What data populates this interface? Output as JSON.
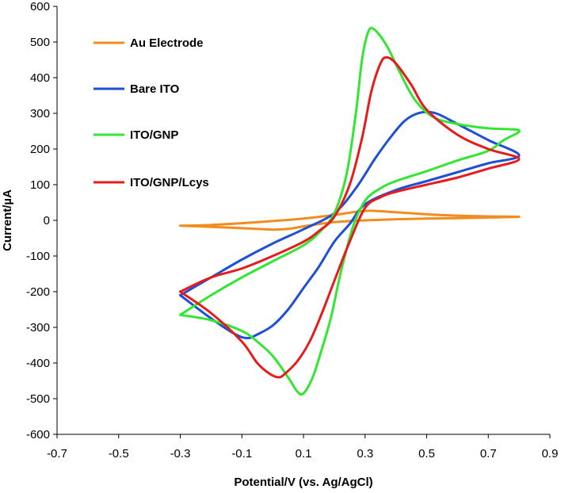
{
  "chart_data": {
    "type": "line",
    "title": "",
    "xlabel": "Potential/V (vs. Ag/AgCl)",
    "ylabel": "Current/µA",
    "xlim": [
      -0.7,
      0.9
    ],
    "ylim": [
      -600,
      600
    ],
    "xticks": [
      -0.7,
      -0.5,
      -0.3,
      -0.1,
      0.1,
      0.3,
      0.5,
      0.7,
      0.9
    ],
    "yticks": [
      -600,
      -500,
      -400,
      -300,
      -200,
      -100,
      0,
      100,
      200,
      300,
      400,
      500,
      600
    ],
    "x_tick_labels": [
      "-0.7",
      "-0.5",
      "-0.3",
      "-0.1",
      "0.1",
      "0.3",
      "0.5",
      "0.7",
      "0.9"
    ],
    "y_tick_labels": [
      "-600",
      "-500",
      "-400",
      "-300",
      "-200",
      "-100",
      "0",
      "100",
      "200",
      "300",
      "400",
      "500",
      "600"
    ],
    "grid": false,
    "legend_position": "top-left",
    "series": [
      {
        "name": "Au Electrode",
        "color": "#F28C1E",
        "points": [
          [
            -0.3,
            -15
          ],
          [
            -0.2,
            -13
          ],
          [
            -0.1,
            -8
          ],
          [
            0.0,
            -2
          ],
          [
            0.1,
            5
          ],
          [
            0.2,
            15
          ],
          [
            0.28,
            25
          ],
          [
            0.32,
            27
          ],
          [
            0.38,
            24
          ],
          [
            0.5,
            17
          ],
          [
            0.6,
            13
          ],
          [
            0.7,
            11
          ],
          [
            0.8,
            10
          ],
          [
            0.7,
            8
          ],
          [
            0.6,
            6
          ],
          [
            0.5,
            5
          ],
          [
            0.4,
            3
          ],
          [
            0.3,
            0
          ],
          [
            0.2,
            -5
          ],
          [
            0.12,
            -14
          ],
          [
            0.05,
            -24
          ],
          [
            0.0,
            -26
          ],
          [
            -0.05,
            -24
          ],
          [
            -0.15,
            -20
          ],
          [
            -0.3,
            -15
          ]
        ]
      },
      {
        "name": "Bare ITO",
        "color": "#1F4FD6",
        "points": [
          [
            -0.3,
            -210
          ],
          [
            -0.2,
            -160
          ],
          [
            -0.1,
            -110
          ],
          [
            0.0,
            -65
          ],
          [
            0.1,
            -25
          ],
          [
            0.2,
            20
          ],
          [
            0.27,
            90
          ],
          [
            0.33,
            170
          ],
          [
            0.38,
            230
          ],
          [
            0.43,
            280
          ],
          [
            0.48,
            302
          ],
          [
            0.53,
            300
          ],
          [
            0.6,
            270
          ],
          [
            0.7,
            225
          ],
          [
            0.8,
            182
          ],
          [
            0.7,
            160
          ],
          [
            0.6,
            135
          ],
          [
            0.5,
            110
          ],
          [
            0.4,
            85
          ],
          [
            0.3,
            45
          ],
          [
            0.25,
            -10
          ],
          [
            0.2,
            -60
          ],
          [
            0.15,
            -130
          ],
          [
            0.1,
            -190
          ],
          [
            0.05,
            -250
          ],
          [
            0.0,
            -295
          ],
          [
            -0.05,
            -320
          ],
          [
            -0.08,
            -330
          ],
          [
            -0.12,
            -320
          ],
          [
            -0.2,
            -275
          ],
          [
            -0.3,
            -210
          ]
        ]
      },
      {
        "name": "ITO/GNP",
        "color": "#33E633",
        "points": [
          [
            -0.3,
            -265
          ],
          [
            -0.2,
            -210
          ],
          [
            -0.1,
            -160
          ],
          [
            0.0,
            -115
          ],
          [
            0.1,
            -70
          ],
          [
            0.15,
            -35
          ],
          [
            0.2,
            20
          ],
          [
            0.24,
            130
          ],
          [
            0.27,
            300
          ],
          [
            0.29,
            450
          ],
          [
            0.31,
            528
          ],
          [
            0.33,
            535
          ],
          [
            0.37,
            490
          ],
          [
            0.41,
            420
          ],
          [
            0.46,
            340
          ],
          [
            0.52,
            290
          ],
          [
            0.6,
            270
          ],
          [
            0.7,
            258
          ],
          [
            0.8,
            252
          ],
          [
            0.75,
            225
          ],
          [
            0.7,
            195
          ],
          [
            0.6,
            168
          ],
          [
            0.5,
            138
          ],
          [
            0.4,
            110
          ],
          [
            0.35,
            90
          ],
          [
            0.3,
            55
          ],
          [
            0.26,
            -20
          ],
          [
            0.22,
            -150
          ],
          [
            0.19,
            -270
          ],
          [
            0.16,
            -360
          ],
          [
            0.13,
            -440
          ],
          [
            0.1,
            -485
          ],
          [
            0.08,
            -480
          ],
          [
            0.05,
            -440
          ],
          [
            0.0,
            -380
          ],
          [
            -0.05,
            -340
          ],
          [
            -0.1,
            -310
          ],
          [
            -0.2,
            -280
          ],
          [
            -0.3,
            -265
          ]
        ]
      },
      {
        "name": "ITO/GNP/Lcys",
        "color": "#E61C1C",
        "points": [
          [
            -0.3,
            -200
          ],
          [
            -0.2,
            -160
          ],
          [
            -0.1,
            -135
          ],
          [
            0.0,
            -100
          ],
          [
            0.1,
            -60
          ],
          [
            0.15,
            -30
          ],
          [
            0.2,
            10
          ],
          [
            0.25,
            100
          ],
          [
            0.29,
            230
          ],
          [
            0.32,
            360
          ],
          [
            0.35,
            440
          ],
          [
            0.37,
            457
          ],
          [
            0.4,
            440
          ],
          [
            0.45,
            380
          ],
          [
            0.5,
            310
          ],
          [
            0.6,
            240
          ],
          [
            0.7,
            200
          ],
          [
            0.8,
            172
          ],
          [
            0.7,
            145
          ],
          [
            0.6,
            120
          ],
          [
            0.5,
            100
          ],
          [
            0.4,
            80
          ],
          [
            0.35,
            65
          ],
          [
            0.3,
            35
          ],
          [
            0.25,
            -60
          ],
          [
            0.2,
            -170
          ],
          [
            0.16,
            -260
          ],
          [
            0.12,
            -340
          ],
          [
            0.08,
            -395
          ],
          [
            0.04,
            -430
          ],
          [
            0.02,
            -440
          ],
          [
            -0.01,
            -430
          ],
          [
            -0.05,
            -400
          ],
          [
            -0.1,
            -340
          ],
          [
            -0.2,
            -260
          ],
          [
            -0.3,
            -200
          ]
        ]
      }
    ]
  }
}
